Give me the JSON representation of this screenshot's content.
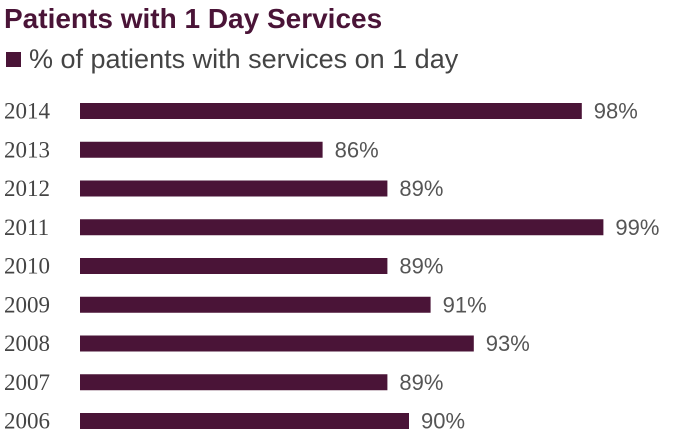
{
  "colors": {
    "bar": "#4a1437",
    "title": "#4a1437",
    "text": "#444444"
  },
  "chart_data": {
    "type": "bar",
    "orientation": "horizontal",
    "title": "Patients with 1 Day Services",
    "categories": [
      "2014",
      "2013",
      "2012",
      "2011",
      "2010",
      "2009",
      "2008",
      "2007",
      "2006"
    ],
    "series": [
      {
        "name": "% of patients with services on 1 day",
        "values": [
          98,
          86,
          89,
          99,
          89,
          91,
          93,
          89,
          90
        ],
        "labels": [
          "98%",
          "86%",
          "89%",
          "99%",
          "89%",
          "91%",
          "93%",
          "89%",
          "90%"
        ]
      }
    ],
    "xlim": [
      75,
      100
    ],
    "legend_position": "top-left",
    "grid": false
  }
}
